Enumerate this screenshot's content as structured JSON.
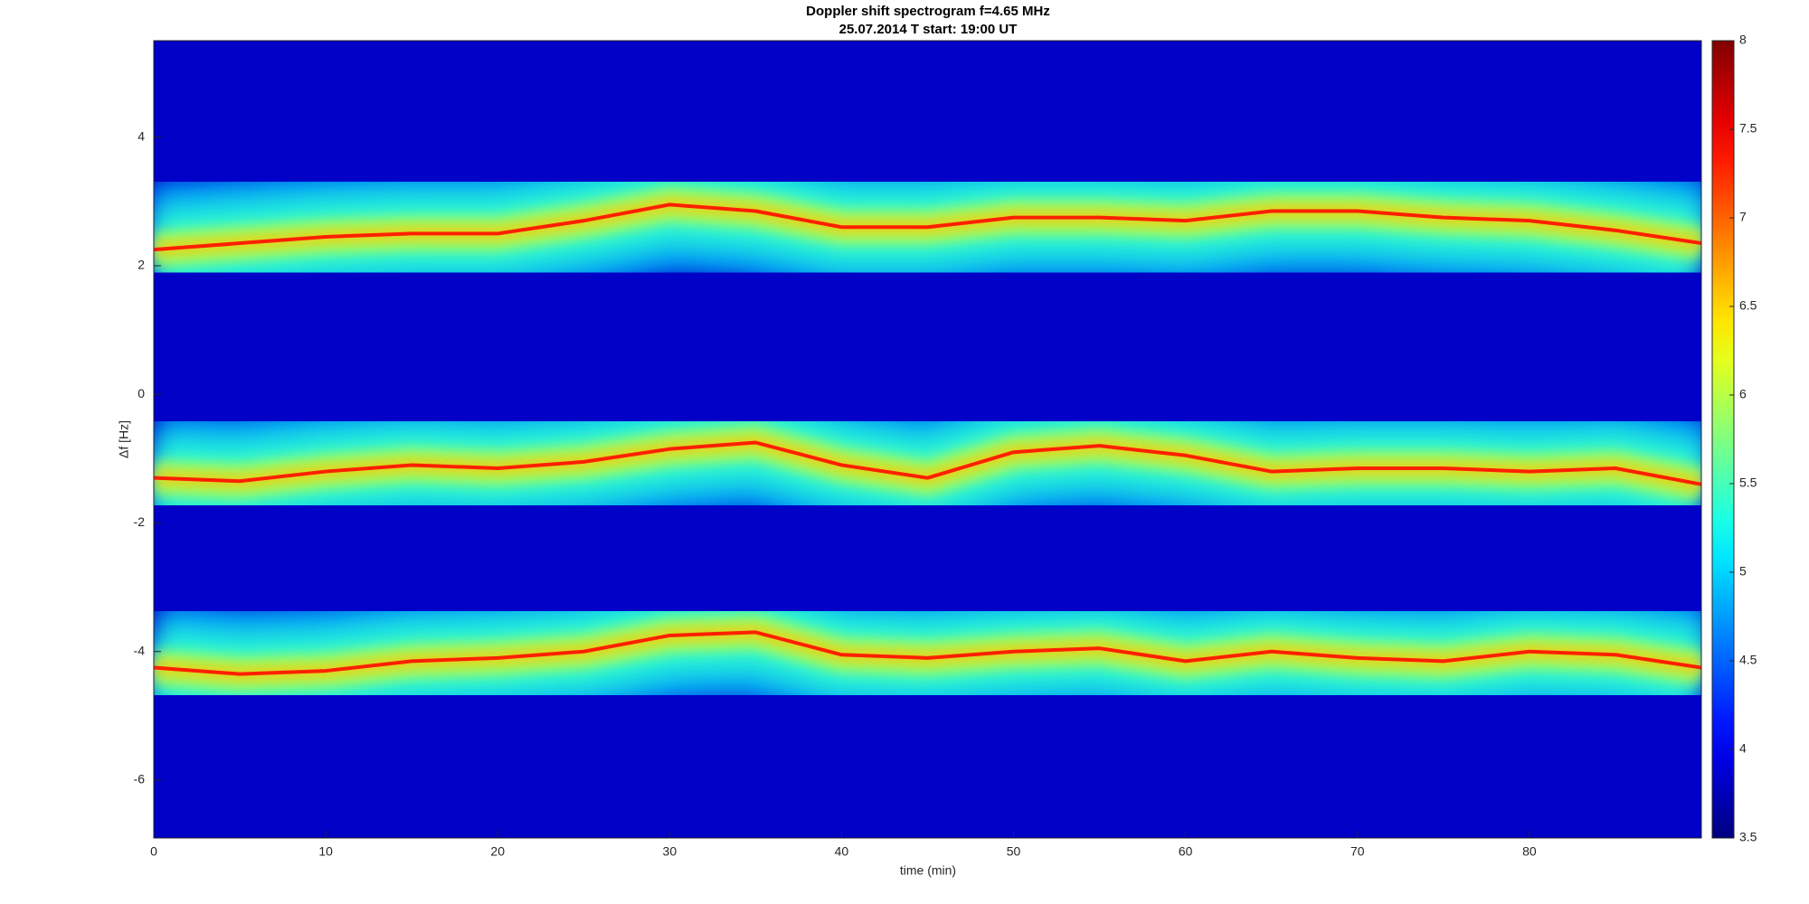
{
  "chart_data": {
    "type": "spectrogram",
    "title": "Doppler shift spectrogram f=4.65 MHz",
    "subtitle": "25.07.2014    T start: 19:00 UT",
    "x_label": "time (min)",
    "y_label": "Δf [Hz]",
    "xlim": [
      0,
      90
    ],
    "xticks": [
      0,
      10,
      20,
      30,
      40,
      50,
      60,
      70,
      80
    ],
    "ylim": [
      -6.9,
      5.5
    ],
    "yticks": [
      -6,
      -4,
      -2,
      0,
      2,
      4
    ],
    "colormap": "jet",
    "clim": [
      3.5,
      8
    ],
    "cticks": [
      3.5,
      4,
      4.5,
      5,
      5.5,
      6,
      6.5,
      7,
      7.5,
      8
    ],
    "x": [
      0,
      5,
      10,
      15,
      20,
      25,
      30,
      35,
      40,
      45,
      50,
      55,
      60,
      65,
      70,
      75,
      80,
      85,
      90
    ],
    "series": [
      {
        "color": "#ff2000",
        "values": [
          2.25,
          2.35,
          2.45,
          2.5,
          2.5,
          2.7,
          2.95,
          2.85,
          2.6,
          2.6,
          2.75,
          2.75,
          2.7,
          2.85,
          2.85,
          2.75,
          2.7,
          2.55,
          2.35
        ]
      },
      {
        "color": "#ff2000",
        "values": [
          -1.3,
          -1.35,
          -1.2,
          -1.1,
          -1.15,
          -1.05,
          -0.85,
          -0.75,
          -1.1,
          -1.3,
          -0.9,
          -0.8,
          -0.95,
          -1.2,
          -1.15,
          -1.15,
          -1.2,
          -1.15,
          -1.4
        ]
      },
      {
        "color": "#ff2000",
        "values": [
          -4.25,
          -4.35,
          -4.3,
          -4.15,
          -4.1,
          -4.0,
          -3.75,
          -3.7,
          -4.05,
          -4.1,
          -4.0,
          -3.95,
          -4.15,
          -4.0,
          -4.1,
          -4.15,
          -4.0,
          -4.05,
          -4.25
        ]
      }
    ]
  }
}
